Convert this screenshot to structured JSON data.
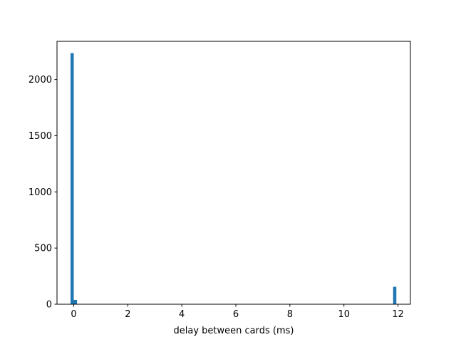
{
  "chart_data": {
    "type": "bar",
    "title": "",
    "xlabel": "delay between cards (ms)",
    "ylabel": "",
    "xlim": [
      -0.62,
      12.46
    ],
    "ylim": [
      0,
      2340
    ],
    "xticks": [
      0,
      2,
      4,
      6,
      8,
      10,
      12
    ],
    "yticks": [
      0,
      500,
      1000,
      1500,
      2000
    ],
    "bin_width": 0.12,
    "bars": [
      {
        "x": -0.06,
        "value": 2235
      },
      {
        "x": 0.06,
        "value": 38
      },
      {
        "x": 11.88,
        "value": 155
      }
    ],
    "grid": false,
    "legend": "none",
    "colors": {
      "bar": "#1f77b4",
      "axes": "#000000"
    }
  }
}
